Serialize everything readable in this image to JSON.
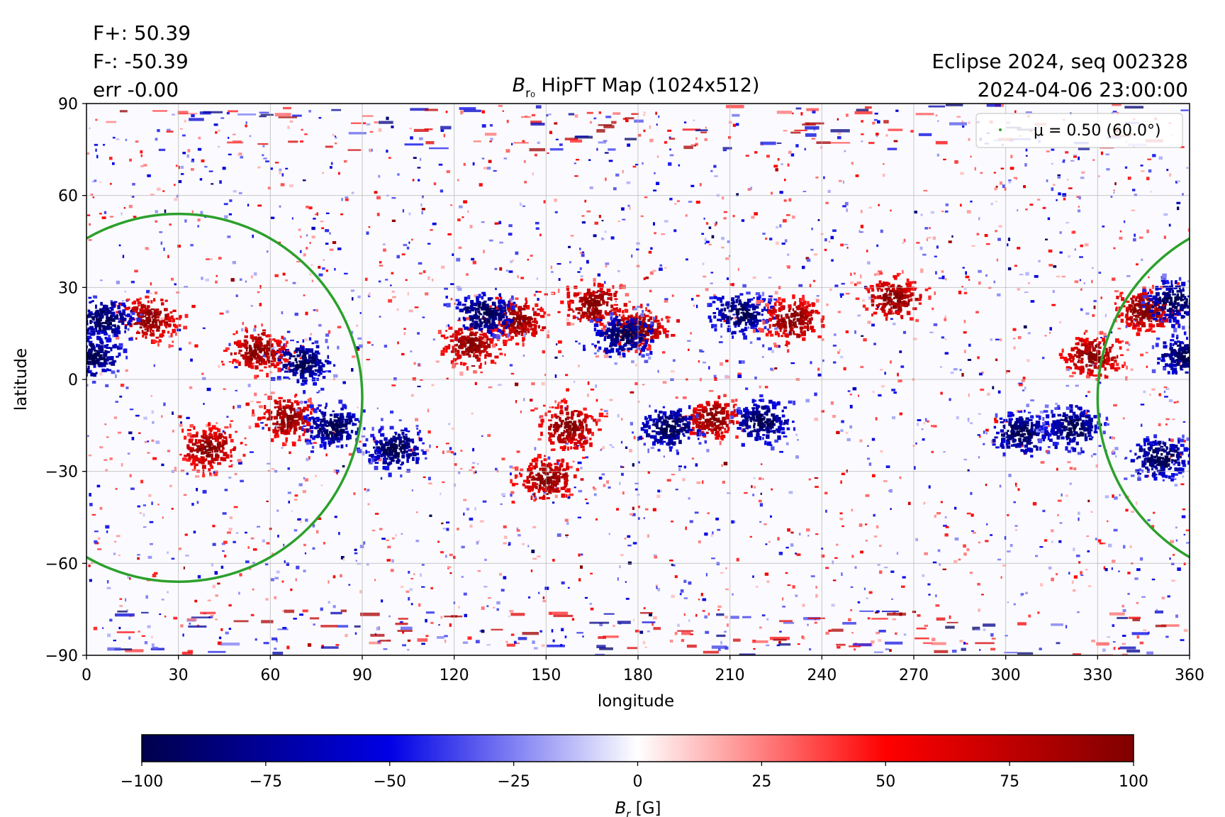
{
  "header": {
    "flux_pos": "F+: 50.39",
    "flux_neg": "F-: -50.39",
    "err": "err -0.00",
    "title_main": "B",
    "title_sub": "r₀",
    "title_rest": " HipFT Map (1024x512)",
    "sequence": "Eclipse 2024, seq 002328",
    "datetime": "2024-04-06 23:00:00"
  },
  "chart_data": {
    "type": "heatmap",
    "title": "B_r0 HipFT Map (1024x512)",
    "xlabel": "longitude",
    "ylabel": "latitude",
    "xlim": [
      0,
      360
    ],
    "ylim": [
      -90,
      90
    ],
    "x_ticks": [
      0,
      30,
      60,
      90,
      120,
      150,
      180,
      210,
      240,
      270,
      300,
      330,
      360
    ],
    "y_ticks": [
      90,
      60,
      30,
      0,
      -30,
      -60,
      -90
    ],
    "x_tick_labels": [
      "0",
      "30",
      "60",
      "90",
      "120",
      "150",
      "180",
      "210",
      "240",
      "270",
      "300",
      "330",
      "360"
    ],
    "y_tick_labels": [
      "90",
      "60",
      "30",
      "0",
      "−30",
      "−60",
      "−90"
    ],
    "grid": true,
    "colormap": "seismic",
    "color_range": [
      -100,
      100
    ],
    "colorbar": {
      "ticks": [
        -100,
        -75,
        -50,
        -25,
        0,
        25,
        50,
        75,
        100
      ],
      "tick_labels": [
        "−100",
        "−75",
        "−50",
        "−25",
        "0",
        "25",
        "50",
        "75",
        "100"
      ],
      "label_main": "B",
      "label_sub": "r",
      "label_unit": " [G]",
      "orientation": "horizontal"
    },
    "legend": {
      "placement": "top-right",
      "entries": [
        {
          "label": "μ = 0.50 (60.0°)",
          "color": "#2ca02c"
        }
      ]
    },
    "mu_contour": {
      "mu": 0.5,
      "angle_deg": 60.0,
      "center_lon": 30,
      "center_lat": -6,
      "radius_deg": 60,
      "color": "#2ca02c"
    },
    "active_regions": [
      {
        "lon": 20,
        "lat": 20,
        "polarity": "positive"
      },
      {
        "lon": 5,
        "lat": 20,
        "polarity": "negative"
      },
      {
        "lon": 2,
        "lat": 8,
        "polarity": "negative"
      },
      {
        "lon": 70,
        "lat": 6,
        "polarity": "negative"
      },
      {
        "lon": 55,
        "lat": 10,
        "polarity": "positive"
      },
      {
        "lon": 40,
        "lat": -22,
        "polarity": "positive"
      },
      {
        "lon": 65,
        "lat": -12,
        "polarity": "positive"
      },
      {
        "lon": 80,
        "lat": -15,
        "polarity": "negative"
      },
      {
        "lon": 100,
        "lat": -22,
        "polarity": "negative"
      },
      {
        "lon": 125,
        "lat": 12,
        "polarity": "positive"
      },
      {
        "lon": 140,
        "lat": 20,
        "polarity": "positive"
      },
      {
        "lon": 130,
        "lat": 22,
        "polarity": "negative"
      },
      {
        "lon": 165,
        "lat": 25,
        "polarity": "positive"
      },
      {
        "lon": 180,
        "lat": 17,
        "polarity": "positive"
      },
      {
        "lon": 175,
        "lat": 15,
        "polarity": "negative"
      },
      {
        "lon": 213,
        "lat": 22,
        "polarity": "negative"
      },
      {
        "lon": 230,
        "lat": 20,
        "polarity": "positive"
      },
      {
        "lon": 204,
        "lat": -12,
        "polarity": "positive"
      },
      {
        "lon": 220,
        "lat": -13,
        "polarity": "negative"
      },
      {
        "lon": 157,
        "lat": -15,
        "polarity": "positive"
      },
      {
        "lon": 190,
        "lat": -15,
        "polarity": "negative"
      },
      {
        "lon": 150,
        "lat": -32,
        "polarity": "positive"
      },
      {
        "lon": 263,
        "lat": 27,
        "polarity": "positive"
      },
      {
        "lon": 305,
        "lat": -17,
        "polarity": "negative"
      },
      {
        "lon": 322,
        "lat": -15,
        "polarity": "negative"
      },
      {
        "lon": 328,
        "lat": 8,
        "polarity": "positive"
      },
      {
        "lon": 345,
        "lat": 23,
        "polarity": "positive"
      },
      {
        "lon": 350,
        "lat": -25,
        "polarity": "negative"
      },
      {
        "lon": 358,
        "lat": 8,
        "polarity": "negative"
      },
      {
        "lon": 355,
        "lat": 26,
        "polarity": "negative"
      }
    ]
  }
}
